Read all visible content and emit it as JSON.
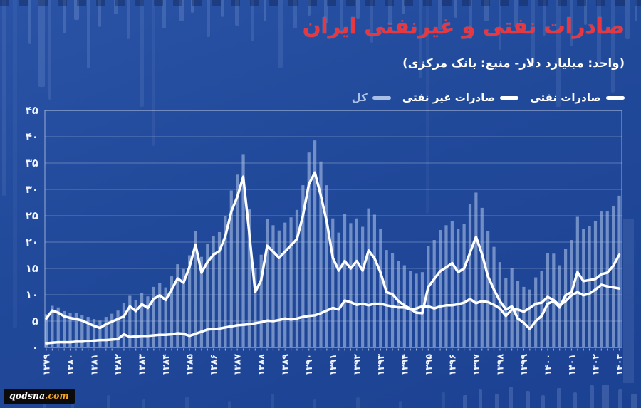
{
  "colors": {
    "background": "#21499a",
    "title": "#e8373f",
    "line": "#ffffff",
    "bars": "#a9bfe6",
    "grid": "#ffffff",
    "axis_text": "#eef3ff",
    "watermark_bg": "#0b0b0b",
    "watermark_accent": "#f5a623"
  },
  "watermark": {
    "name": "qodsna",
    "tld": ".com"
  },
  "chart_data": {
    "type": "bar-line-combo",
    "title": "صادرات نفتی و غیرنفتی ایران",
    "subtitle": "(واحد: میلیارد دلار- منبع: بانک مرکزی)",
    "unit": "میلیارد دلار",
    "source": "بانک مرکزی",
    "grid": true,
    "legend_position": "top-right",
    "ylim": [
      0,
      45
    ],
    "y_tick_step": 5,
    "y_tick_labels": [
      "۰",
      "۵",
      "۱۰",
      "۱۵",
      "۲۰",
      "۲۵",
      "۳۰",
      "۳۵",
      "۴۰",
      "۴۵"
    ],
    "x_tick_labels": [
      "۱۳۷۹",
      "۱۳۸۰",
      "۱۳۸۱",
      "۱۳۸۲",
      "۱۳۸۳",
      "۱۳۸۴",
      "۱۳۸۵",
      "۱۳۸۶",
      "۱۳۸۷",
      "۱۳۸۸",
      "۱۳۸۹",
      "۱۳۹۰",
      "۱۳۹۱",
      "۱۳۹۲",
      "۱۳۹۳",
      "۱۳۹۴",
      "۱۳۹۵",
      "۱۳۹۶",
      "۱۳۹۷",
      "۱۳۹۸",
      "۱۳۹۹",
      "۱۴۰۰",
      "۱۴۰۱",
      "۱۴۰۲",
      "۱۴۰۳"
    ],
    "x_tick_values": [
      1379,
      1380,
      1381,
      1382,
      1383,
      1384,
      1385,
      1386,
      1387,
      1388,
      1389,
      1390,
      1391,
      1392,
      1393,
      1394,
      1395,
      1396,
      1397,
      1398,
      1399,
      1400,
      1401,
      1402,
      1403
    ],
    "points_per_year": 4,
    "series": [
      {
        "name": "صادرات نفتی",
        "type": "line",
        "color": "#ffffff",
        "values": [
          5.5,
          7.0,
          6.6,
          5.9,
          5.6,
          5.4,
          5.1,
          4.6,
          4.1,
          3.7,
          4.4,
          4.9,
          5.4,
          5.9,
          7.8,
          6.9,
          8.2,
          7.5,
          9.2,
          9.9,
          9.0,
          11.0,
          13.1,
          12.3,
          15.3,
          19.5,
          14.2,
          16.2,
          17.6,
          18.3,
          21.1,
          25.8,
          28.6,
          32.4,
          21.8,
          10.5,
          12.8,
          19.3,
          18.2,
          17.0,
          18.2,
          19.4,
          20.6,
          25.0,
          31.0,
          33.2,
          28.8,
          23.8,
          17.0,
          14.6,
          16.4,
          15.0,
          16.4,
          14.6,
          18.4,
          16.9,
          14.2,
          10.5,
          10.1,
          8.8,
          8.0,
          7.3,
          6.6,
          6.5,
          11.5,
          13.0,
          14.5,
          15.2,
          16.0,
          14.3,
          15.0,
          18.0,
          21.0,
          17.7,
          13.5,
          11.0,
          8.8,
          7.2,
          7.8,
          5.5,
          4.7,
          3.5,
          5.0,
          6.0,
          8.3,
          8.8,
          7.6,
          9.9,
          10.5,
          14.3,
          12.6,
          12.8,
          13.0,
          13.9,
          14.2,
          15.5,
          17.6
        ]
      },
      {
        "name": "صادرات غیر نفتی",
        "type": "line",
        "color": "#ffffff",
        "values": [
          0.8,
          0.9,
          1.0,
          1.0,
          1.0,
          1.1,
          1.1,
          1.2,
          1.3,
          1.4,
          1.4,
          1.5,
          1.6,
          2.5,
          2.0,
          2.1,
          2.2,
          2.2,
          2.3,
          2.4,
          2.4,
          2.5,
          2.7,
          2.6,
          2.2,
          2.6,
          3.0,
          3.4,
          3.5,
          3.6,
          3.8,
          4.0,
          4.2,
          4.3,
          4.4,
          4.6,
          4.8,
          5.1,
          5.0,
          5.2,
          5.5,
          5.3,
          5.5,
          5.8,
          6.0,
          6.1,
          6.5,
          7.0,
          7.5,
          7.2,
          8.9,
          8.6,
          8.1,
          8.3,
          8.0,
          8.3,
          8.3,
          8.0,
          7.8,
          7.6,
          7.6,
          7.2,
          7.4,
          7.8,
          7.8,
          7.4,
          7.8,
          8.0,
          8.0,
          8.2,
          8.5,
          9.2,
          8.4,
          8.8,
          8.6,
          8.1,
          7.4,
          6.0,
          7.2,
          7.2,
          6.8,
          7.5,
          8.3,
          8.5,
          9.6,
          9.0,
          8.0,
          8.8,
          9.9,
          10.5,
          9.9,
          10.2,
          11.0,
          11.9,
          11.6,
          11.4,
          11.2
        ]
      },
      {
        "name": "کل",
        "type": "bar",
        "color": "#a9bfe6",
        "values": [
          6.3,
          7.9,
          7.6,
          6.9,
          6.6,
          6.5,
          6.2,
          5.8,
          5.4,
          5.1,
          5.8,
          6.4,
          7.0,
          8.4,
          9.8,
          9.0,
          10.4,
          9.7,
          11.5,
          12.3,
          11.4,
          13.5,
          15.8,
          14.9,
          17.5,
          22.1,
          17.2,
          19.6,
          21.1,
          21.9,
          24.9,
          29.8,
          32.8,
          36.7,
          26.2,
          15.1,
          17.6,
          24.4,
          23.2,
          22.2,
          23.7,
          24.7,
          26.1,
          30.8,
          37.0,
          39.3,
          35.3,
          30.8,
          24.5,
          21.8,
          25.3,
          23.6,
          24.5,
          22.9,
          26.4,
          25.2,
          22.5,
          18.5,
          17.9,
          16.4,
          15.6,
          14.5,
          14.0,
          14.3,
          19.3,
          20.4,
          22.3,
          23.2,
          24.0,
          22.5,
          23.5,
          27.2,
          29.4,
          26.5,
          22.1,
          19.1,
          16.2,
          13.2,
          15.0,
          12.7,
          11.5,
          11.0,
          13.3,
          14.5,
          17.9,
          17.8,
          15.6,
          18.7,
          20.4,
          24.8,
          22.5,
          23.0,
          24.0,
          25.8,
          25.8,
          26.9,
          28.8
        ]
      }
    ]
  }
}
